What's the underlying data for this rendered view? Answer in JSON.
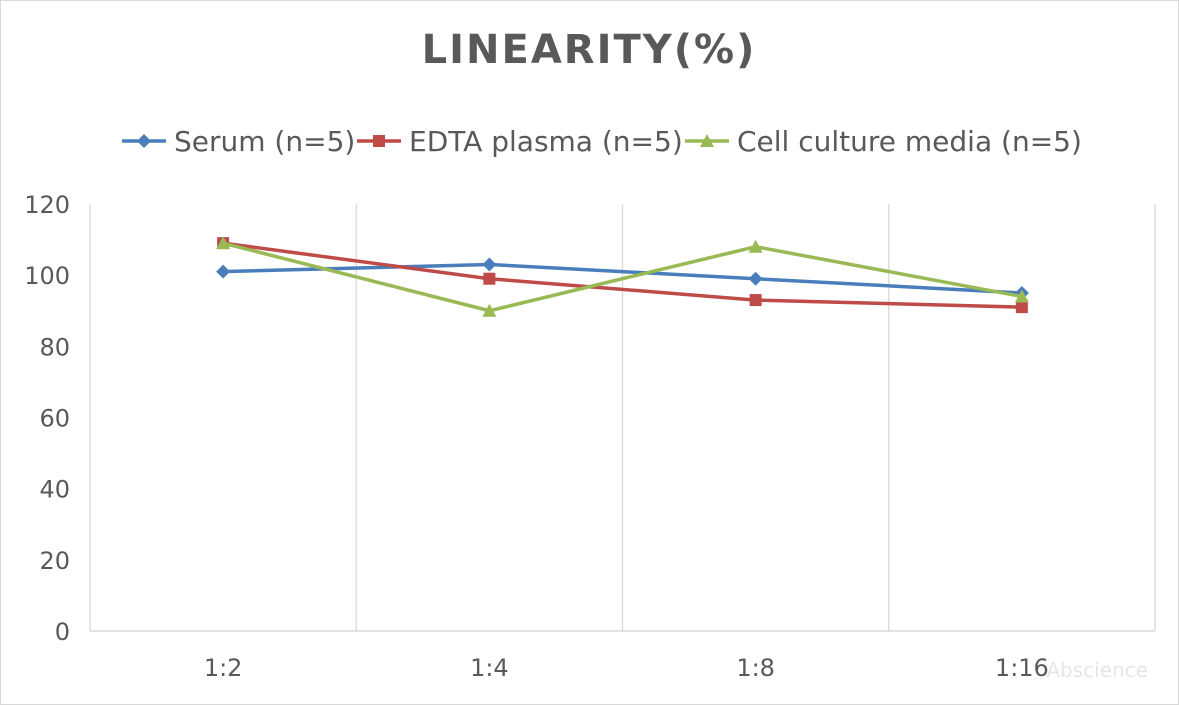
{
  "chart_data": {
    "type": "line",
    "title": "LINEARITY(%)",
    "categories": [
      "1:2",
      "1:4",
      "1:8",
      "1:16"
    ],
    "ylim": [
      0,
      120
    ],
    "yticks": [
      0,
      20,
      40,
      60,
      80,
      100,
      120
    ],
    "grid": {
      "vertical": true,
      "horizontal": false
    },
    "legend_position": "top",
    "series": [
      {
        "name": "Serum (n=5)",
        "values": [
          101,
          103,
          99,
          95
        ],
        "color": "#4a7ebb",
        "marker": "diamond"
      },
      {
        "name": "EDTA plasma (n=5)",
        "values": [
          109,
          99,
          93,
          91
        ],
        "color": "#be4b48",
        "marker": "square"
      },
      {
        "name": "Cell culture media (n=5)",
        "values": [
          109,
          90,
          108,
          94
        ],
        "color": "#98b954",
        "marker": "triangle"
      }
    ],
    "watermark": "Abscience"
  }
}
